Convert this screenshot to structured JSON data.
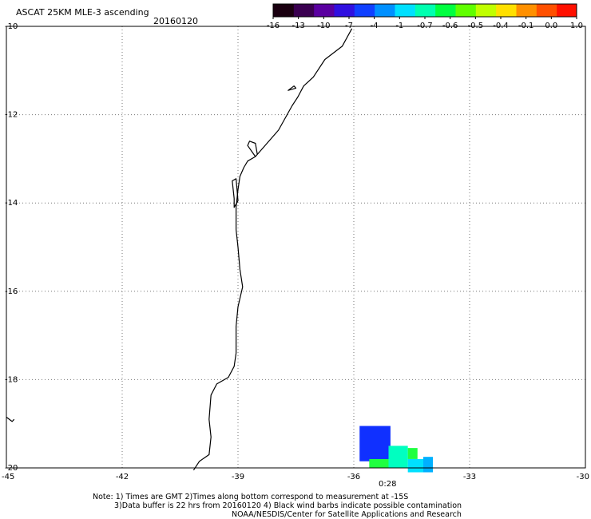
{
  "header": {
    "title": "ASCAT 25KM MLE-3 ascending",
    "date": "20160120"
  },
  "colorbar": {
    "colors": [
      "#1a0010",
      "#3a0050",
      "#5a00a0",
      "#3010e0",
      "#1040ff",
      "#0090ff",
      "#00e0ff",
      "#00ffb0",
      "#00ff40",
      "#60ff00",
      "#c0ff00",
      "#ffe000",
      "#ff9000",
      "#ff5000",
      "#ff1000"
    ],
    "tick_labels": [
      "-16",
      "-13",
      "-10",
      "-7",
      "-4",
      "-1",
      "-0.7",
      "-0.6",
      "-0.5",
      "-0.4",
      "-0.1",
      "0.0",
      "1.0"
    ]
  },
  "map": {
    "lat_labels": [
      "-10",
      "-12",
      "-14",
      "-16",
      "-18",
      "-20"
    ],
    "lon_labels": [
      "-45",
      "-42",
      "-39",
      "-36",
      "-33",
      "-30"
    ],
    "swath_time_label": "0:28",
    "swath_time_color": "#ff2000",
    "swath_cells": [
      {
        "lon0": -35.85,
        "lon1": -35.05,
        "lat0": -19.85,
        "lat1": -19.05,
        "color": "#1030ff"
      },
      {
        "lon0": -35.6,
        "lon1": -35.1,
        "lat0": -20.0,
        "lat1": -19.8,
        "color": "#20ff40"
      },
      {
        "lon0": -35.1,
        "lon1": -34.6,
        "lat0": -20.0,
        "lat1": -19.5,
        "color": "#00ffc0"
      },
      {
        "lon0": -34.6,
        "lon1": -34.35,
        "lat0": -19.8,
        "lat1": -19.55,
        "color": "#20ff40"
      },
      {
        "lon0": -34.6,
        "lon1": -34.2,
        "lat0": -20.1,
        "lat1": -19.8,
        "color": "#00e0ff"
      },
      {
        "lon0": -34.2,
        "lon1": -33.95,
        "lat0": -20.1,
        "lat1": -19.75,
        "color": "#00b0ff"
      }
    ],
    "coastline": [
      [
        -36.05,
        -10.05
      ],
      [
        -36.3,
        -10.45
      ],
      [
        -36.75,
        -10.75
      ],
      [
        -37.05,
        -11.15
      ],
      [
        -37.3,
        -11.35
      ],
      [
        -37.45,
        -11.6
      ],
      [
        -37.6,
        -11.8
      ],
      [
        -37.95,
        -12.35
      ],
      [
        -38.35,
        -12.75
      ],
      [
        -38.55,
        -12.95
      ],
      [
        -38.75,
        -13.05
      ],
      [
        -38.85,
        -13.2
      ],
      [
        -38.95,
        -13.4
      ],
      [
        -39.0,
        -13.7
      ],
      [
        -39.05,
        -14.1
      ],
      [
        -39.05,
        -14.6
      ],
      [
        -39.0,
        -15.0
      ],
      [
        -38.95,
        -15.5
      ],
      [
        -38.88,
        -15.9
      ],
      [
        -39.0,
        -16.35
      ],
      [
        -39.05,
        -16.8
      ],
      [
        -39.05,
        -17.4
      ],
      [
        -39.1,
        -17.7
      ],
      [
        -39.25,
        -17.95
      ],
      [
        -39.55,
        -18.1
      ],
      [
        -39.7,
        -18.35
      ],
      [
        -39.75,
        -18.9
      ],
      [
        -39.7,
        -19.3
      ],
      [
        -39.75,
        -19.7
      ],
      [
        -40.0,
        -19.85
      ],
      [
        -40.15,
        -20.05
      ]
    ],
    "bay_outline": [
      [
        -38.55,
        -12.95
      ],
      [
        -38.75,
        -12.7
      ],
      [
        -38.7,
        -12.6
      ],
      [
        -38.55,
        -12.65
      ],
      [
        -38.5,
        -12.9
      ]
    ],
    "islands": [
      [
        [
          -39.05,
          -13.45
        ],
        [
          -39.15,
          -13.5
        ],
        [
          -39.1,
          -13.9
        ],
        [
          -39.1,
          -14.1
        ],
        [
          -39.0,
          -13.95
        ]
      ],
      [
        [
          -37.5,
          -11.4
        ],
        [
          -37.7,
          -11.45
        ],
        [
          -37.55,
          -11.35
        ]
      ]
    ],
    "wind_barb_mark": [
      [
        -45.0,
        -18.85
      ],
      [
        -44.85,
        -18.95
      ],
      [
        -44.8,
        -18.9
      ]
    ]
  },
  "footer": {
    "line1": "Note: 1) Times are GMT 2)Times along bottom correspond to measurement at -15S",
    "line2": "3)Data buffer is 22 hrs from 20160120 4) Black wind barbs indicate possible contamination",
    "line3": "NOAA/NESDIS/Center for Satellite Applications and Research"
  }
}
